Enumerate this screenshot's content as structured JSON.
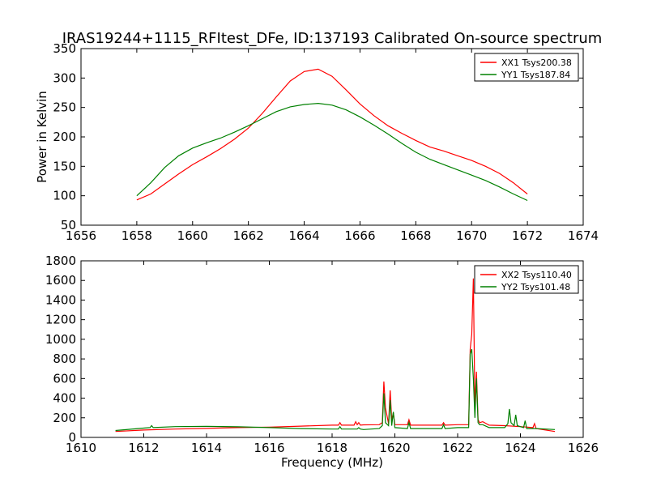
{
  "figure": {
    "title": "IRAS19244+1115_RFItest_DFe, ID:137193 Calibrated On-source spectrum",
    "background": "#ffffff"
  },
  "chart_data": [
    {
      "type": "line",
      "title": "",
      "xlabel": "",
      "ylabel": "Power in Kelvin",
      "xlim": [
        1656,
        1674
      ],
      "ylim": [
        50,
        350
      ],
      "xticks": [
        1656,
        1658,
        1660,
        1662,
        1664,
        1666,
        1668,
        1670,
        1672,
        1674
      ],
      "yticks": [
        50,
        100,
        150,
        200,
        250,
        300,
        350
      ],
      "grid": false,
      "legend_position": "top-right",
      "series": [
        {
          "name": "XX1 Tsys200.38",
          "color": "#ff0000",
          "x": [
            1658,
            1658.5,
            1659,
            1659.5,
            1660,
            1660.5,
            1661,
            1661.5,
            1662,
            1662.5,
            1663,
            1663.5,
            1664,
            1664.5,
            1665,
            1665.5,
            1666,
            1666.5,
            1667,
            1667.5,
            1668,
            1668.5,
            1669,
            1669.5,
            1670,
            1670.5,
            1671,
            1671.5,
            1672
          ],
          "y": [
            93,
            103,
            120,
            137,
            153,
            166,
            180,
            196,
            215,
            240,
            268,
            295,
            311,
            315,
            303,
            280,
            256,
            236,
            219,
            206,
            194,
            183,
            176,
            168,
            160,
            150,
            138,
            122,
            103
          ]
        },
        {
          "name": "YY1 Tsys187.84",
          "color": "#008000",
          "x": [
            1658,
            1658.5,
            1659,
            1659.5,
            1660,
            1660.5,
            1661,
            1661.5,
            1662,
            1662.5,
            1663,
            1663.5,
            1664,
            1664.5,
            1665,
            1665.5,
            1666,
            1666.5,
            1667,
            1667.5,
            1668,
            1668.5,
            1669,
            1669.5,
            1670,
            1670.5,
            1671,
            1671.5,
            1672
          ],
          "y": [
            100,
            122,
            148,
            168,
            181,
            190,
            198,
            208,
            219,
            231,
            243,
            251,
            255,
            257,
            254,
            246,
            234,
            220,
            205,
            189,
            174,
            162,
            153,
            144,
            135,
            126,
            115,
            103,
            92
          ]
        }
      ]
    },
    {
      "type": "line",
      "title": "",
      "xlabel": "Frequency (MHz)",
      "ylabel": "",
      "xlim": [
        1610,
        1626
      ],
      "ylim": [
        0,
        1800
      ],
      "xticks": [
        1610,
        1612,
        1614,
        1616,
        1618,
        1620,
        1622,
        1624,
        1626
      ],
      "yticks": [
        0,
        200,
        400,
        600,
        800,
        1000,
        1200,
        1400,
        1600,
        1800
      ],
      "grid": false,
      "legend_position": "top-right",
      "series": [
        {
          "name": "XX2 Tsys110.40",
          "color": "#ff0000",
          "x": [
            1611.1,
            1612,
            1613,
            1614,
            1615,
            1616,
            1617,
            1618,
            1618.2,
            1618.25,
            1618.3,
            1618.7,
            1618.75,
            1618.8,
            1618.85,
            1618.9,
            1619.0,
            1619.5,
            1619.6,
            1619.65,
            1619.7,
            1619.8,
            1619.85,
            1619.9,
            1619.95,
            1620.0,
            1620.4,
            1620.45,
            1620.5,
            1621.5,
            1621.55,
            1621.6,
            1622.0,
            1622.35,
            1622.4,
            1622.45,
            1622.5,
            1622.55,
            1622.6,
            1622.65,
            1622.7,
            1622.8,
            1623.0,
            1623.5,
            1624.0,
            1624.4,
            1624.45,
            1624.5,
            1625.1
          ],
          "y": [
            60,
            75,
            85,
            92,
            100,
            105,
            115,
            125,
            125,
            150,
            125,
            125,
            160,
            130,
            150,
            125,
            128,
            130,
            150,
            570,
            300,
            140,
            480,
            180,
            250,
            130,
            130,
            180,
            125,
            125,
            150,
            125,
            130,
            130,
            900,
            1050,
            1620,
            300,
            670,
            180,
            150,
            160,
            125,
            120,
            110,
            100,
            140,
            90,
            60
          ]
        },
        {
          "name": "YY2 Tsys101.48",
          "color": "#008000",
          "x": [
            1611.1,
            1612,
            1612.2,
            1612.25,
            1612.3,
            1613,
            1614,
            1615,
            1616,
            1617,
            1618,
            1618.2,
            1618.25,
            1618.3,
            1618.8,
            1618.85,
            1618.9,
            1619.0,
            1619.5,
            1619.6,
            1619.65,
            1619.7,
            1619.8,
            1619.85,
            1619.9,
            1619.95,
            1620.0,
            1620.4,
            1620.45,
            1620.5,
            1621.5,
            1621.55,
            1621.6,
            1622.0,
            1622.35,
            1622.4,
            1622.45,
            1622.5,
            1622.55,
            1622.6,
            1622.65,
            1622.7,
            1622.8,
            1623.0,
            1623.5,
            1623.6,
            1623.65,
            1623.7,
            1623.8,
            1623.85,
            1623.9,
            1624.1,
            1624.15,
            1624.2,
            1624.5,
            1625.1
          ],
          "y": [
            70,
            95,
            100,
            120,
            100,
            110,
            112,
            108,
            100,
            90,
            85,
            85,
            110,
            85,
            85,
            100,
            85,
            80,
            90,
            120,
            450,
            150,
            120,
            380,
            120,
            260,
            100,
            90,
            150,
            90,
            90,
            130,
            90,
            100,
            100,
            850,
            900,
            600,
            200,
            600,
            150,
            130,
            130,
            100,
            100,
            140,
            290,
            150,
            120,
            230,
            120,
            100,
            170,
            90,
            90,
            80
          ]
        }
      ]
    }
  ]
}
